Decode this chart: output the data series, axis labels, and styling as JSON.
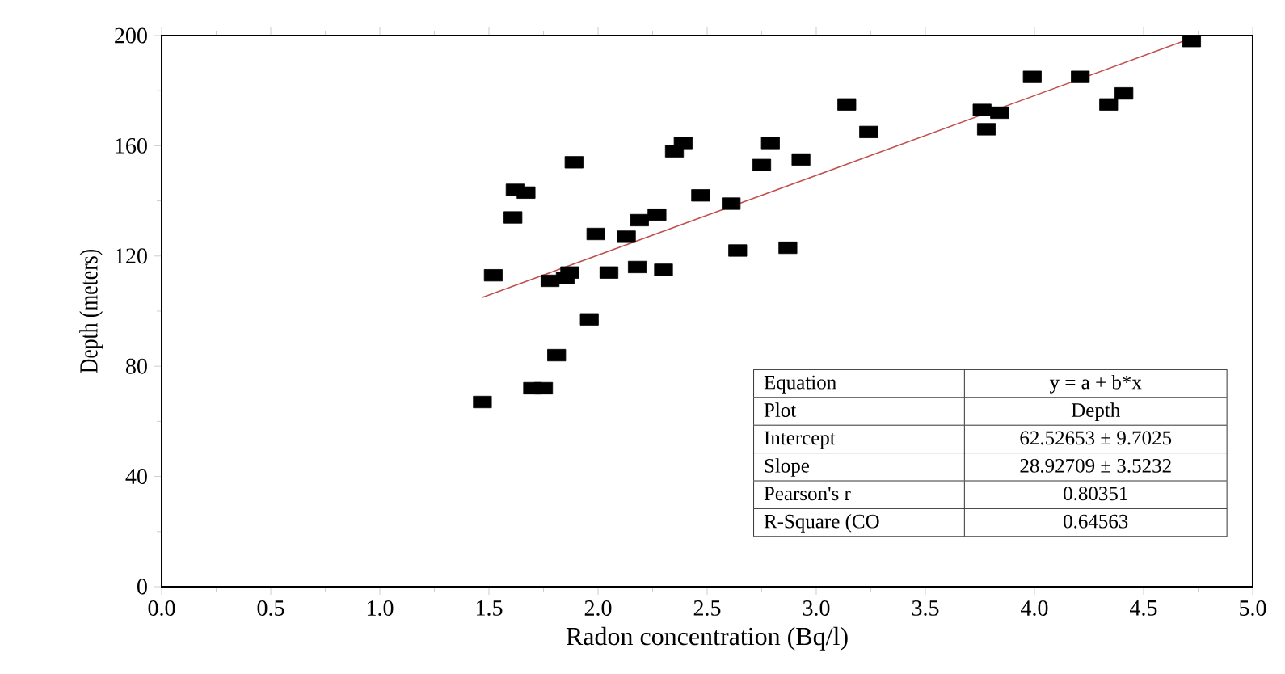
{
  "chart_data": {
    "type": "scatter",
    "xlabel": "Radon concentration (Bq/l)",
    "ylabel": "Depth (meters)",
    "xlim": [
      0,
      5.0
    ],
    "ylim": [
      0,
      200
    ],
    "xticks": [
      {
        "value": 0,
        "label": "0.0"
      },
      {
        "value": 0.5,
        "label": "0.5"
      },
      {
        "value": 1,
        "label": "1.0"
      },
      {
        "value": 1.5,
        "label": "1.5"
      },
      {
        "value": 2,
        "label": "2.0"
      },
      {
        "value": 2.5,
        "label": "2.5"
      },
      {
        "value": 3,
        "label": "3.0"
      },
      {
        "value": 3.5,
        "label": "3.5"
      },
      {
        "value": 4,
        "label": "4.0"
      },
      {
        "value": 4.5,
        "label": "4.5"
      },
      {
        "value": 5,
        "label": "5.0"
      }
    ],
    "yticks": [
      0,
      40,
      80,
      120,
      160,
      200
    ],
    "grid": false,
    "series": [
      {
        "marker": "square",
        "color": "#000000",
        "x": [
          1.47,
          1.52,
          1.61,
          1.62,
          1.67,
          1.7,
          1.75,
          1.78,
          1.81,
          1.85,
          1.87,
          1.89,
          1.96,
          1.99,
          2.05,
          2.13,
          2.18,
          2.19,
          2.27,
          2.3,
          2.35,
          2.39,
          2.47,
          2.61,
          2.64,
          2.75,
          2.79,
          2.87,
          2.93,
          3.14,
          3.24,
          3.76,
          3.78,
          3.84,
          3.99,
          4.21,
          4.34,
          4.41,
          4.72
        ],
        "values": [
          67,
          113,
          134,
          144,
          143,
          72,
          72,
          111,
          84,
          112,
          114,
          154,
          97,
          128,
          114,
          127,
          116,
          133,
          135,
          115,
          158,
          161,
          142,
          139,
          122,
          153,
          161,
          123,
          155,
          175,
          165,
          173,
          166,
          172,
          185,
          185,
          175,
          179,
          198
        ]
      },
      {
        "type": "line",
        "marker": "none",
        "line_style": "solid",
        "color": "#c0504d",
        "x": [
          1.47,
          4.74
        ],
        "values": [
          105.0,
          199.6
        ]
      }
    ],
    "annotations": [
      "Equation",
      "y = a + b*x",
      "Plot",
      "Depth",
      "Intercept",
      "62.52653 ± 9.7025",
      "Slope",
      "28.92709 ± 3.5232",
      "Pearson's r",
      "0.80351",
      "R-Square (CO",
      "0.64563"
    ]
  }
}
